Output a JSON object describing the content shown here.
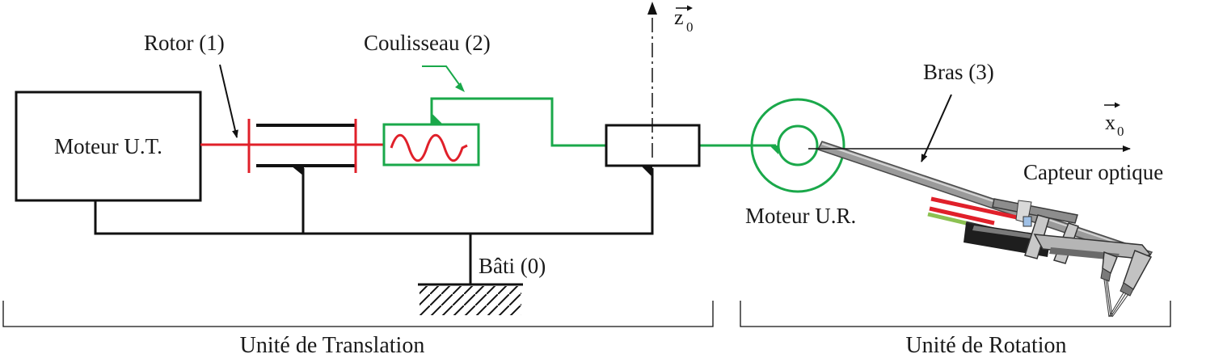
{
  "labels": {
    "motor_ut": "Moteur U.T.",
    "rotor": "Rotor (1)",
    "slider": "Coulisseau (2)",
    "frame": "Bâti (0)",
    "motor_ur": "Moteur U.R.",
    "arm": "Bras (3)",
    "sensor": "Capteur optique",
    "unit_translation": "Unité de Translation",
    "unit_rotation": "Unité de Rotation"
  },
  "axes": {
    "z0_letter": "z",
    "z0_sub": "0",
    "x0_letter": "x",
    "x0_sub": "0"
  },
  "colors": {
    "frame": "#111111",
    "rotor": "#e0202a",
    "slider": "#1aa84a"
  }
}
